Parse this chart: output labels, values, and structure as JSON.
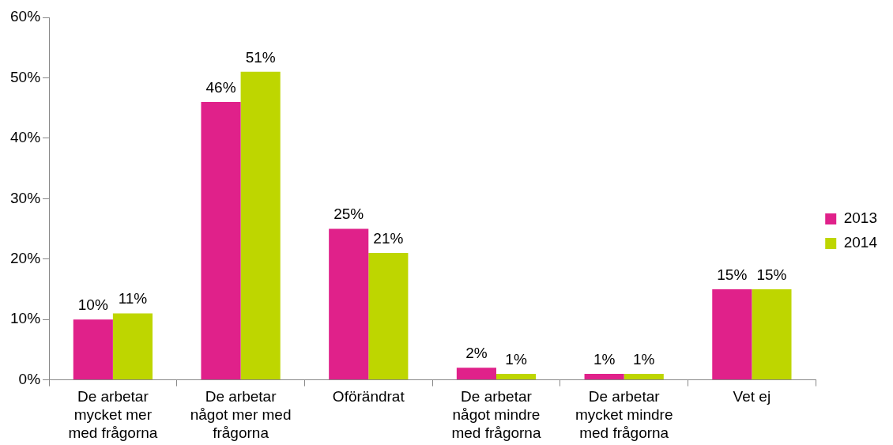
{
  "chart_data": {
    "type": "bar",
    "categories": [
      "De arbetar mycket mer med frågorna",
      "De arbetar något mer med frågorna",
      "Oförändrat",
      "De arbetar något mindre med frågorna",
      "De arbetar mycket mindre med frågorna",
      "Vet ej"
    ],
    "series": [
      {
        "name": "2013",
        "color": "#e0218a",
        "values": [
          10,
          46,
          25,
          2,
          1,
          15
        ],
        "value_labels": [
          "10%",
          "46%",
          "25%",
          "2%",
          "1%",
          "15%"
        ]
      },
      {
        "name": "2014",
        "color": "#bed600",
        "values": [
          11,
          51,
          21,
          1,
          1,
          15
        ],
        "value_labels": [
          "11%",
          "51%",
          "21%",
          "1%",
          "1%",
          "15%"
        ]
      }
    ],
    "ylim": [
      0,
      60
    ],
    "yticks": [
      {
        "value": 0,
        "label": "0%"
      },
      {
        "value": 10,
        "label": "10%"
      },
      {
        "value": 20,
        "label": "20%"
      },
      {
        "value": 30,
        "label": "30%"
      },
      {
        "value": 40,
        "label": "40%"
      },
      {
        "value": 50,
        "label": "50%"
      },
      {
        "value": 60,
        "label": "60%"
      }
    ],
    "grid": false,
    "legend": "right"
  }
}
